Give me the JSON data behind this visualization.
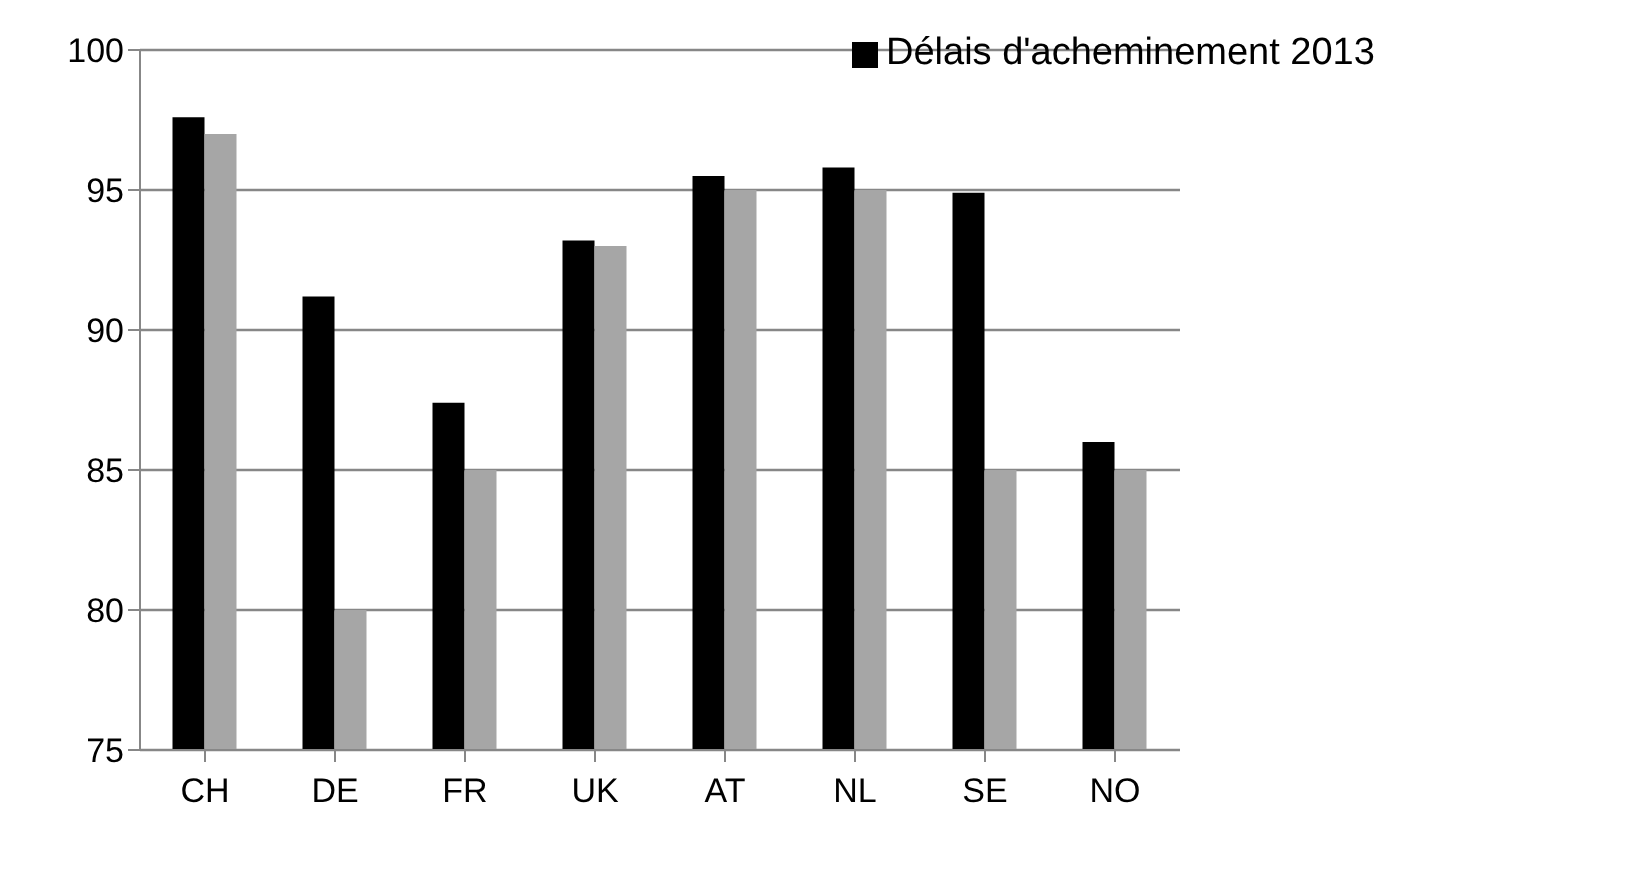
{
  "chart_data": {
    "type": "bar",
    "categories": [
      "CH",
      "DE",
      "FR",
      "UK",
      "AT",
      "NL",
      "SE",
      "NO"
    ],
    "series": [
      {
        "name": "Délais d'acheminement 2013",
        "color": "#000000",
        "values": [
          97.6,
          91.2,
          87.4,
          93.2,
          95.5,
          95.8,
          94.9,
          86.0
        ]
      },
      {
        "color": "#a6a6a6",
        "values": [
          97,
          80,
          85,
          93,
          95,
          95,
          85,
          85
        ]
      }
    ],
    "ylim": [
      75,
      100
    ],
    "yticks": [
      75,
      80,
      85,
      90,
      95,
      100
    ],
    "grid": "y",
    "legend": "top right"
  }
}
